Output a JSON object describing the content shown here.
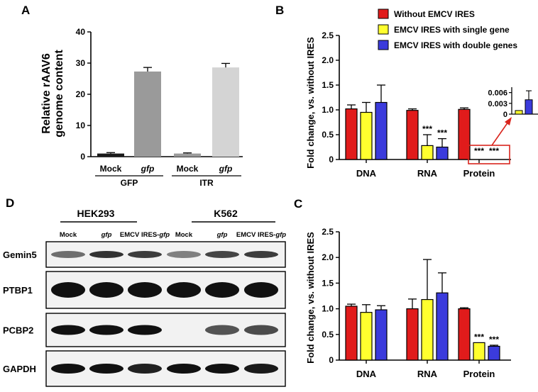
{
  "panel_labels": {
    "a": "A",
    "b": "B",
    "c": "C",
    "d": "D"
  },
  "colors": {
    "red": "#e11b1b",
    "yellow": "#ffff2e",
    "blue": "#3b3bdc",
    "dark": "#1a1a1a",
    "gray": "#9a9a9a",
    "light_gray": "#d4d4d4",
    "inset_box": "#d9251d"
  },
  "legend": [
    {
      "label": "Without EMCV IRES",
      "color": "#e11b1b"
    },
    {
      "label": "EMCV IRES with single gene",
      "color": "#ffff2e"
    },
    {
      "label": "EMCV IRES with double genes",
      "color": "#3b3bdc"
    }
  ],
  "blot": {
    "cell_lines": [
      "HEK293",
      "K562"
    ],
    "lanes": [
      {
        "text": "Mock",
        "italic": ""
      },
      {
        "text": "",
        "italic": "gfp"
      },
      {
        "text": "EMCV IRES-",
        "italic": "gfp"
      },
      {
        "text": "Mock",
        "italic": ""
      },
      {
        "text": "",
        "italic": "gfp"
      },
      {
        "text": "EMCV IRES-",
        "italic": "gfp"
      }
    ],
    "proteins": [
      "Gemin5",
      "PTBP1",
      "PCBP2",
      "GAPDH"
    ],
    "band_intensity": [
      [
        0.45,
        0.8,
        0.75,
        0.35,
        0.7,
        0.75
      ],
      [
        1.0,
        1.0,
        1.0,
        1.0,
        1.0,
        1.0
      ],
      [
        1.0,
        1.0,
        1.0,
        0.0,
        0.6,
        0.65
      ],
      [
        1.0,
        1.0,
        0.9,
        1.0,
        1.0,
        0.95
      ]
    ]
  },
  "chart_data": [
    {
      "id": "A",
      "type": "bar",
      "title": "",
      "ylabel": "Relative rAAV6 genome content",
      "ylim": [
        0,
        40
      ],
      "yticks": [
        0,
        10,
        20,
        30,
        40
      ],
      "categories": [
        "Mock",
        "gfp",
        "Mock",
        "gfp"
      ],
      "italic_categories": [
        false,
        true,
        false,
        true
      ],
      "groups": [
        {
          "label": "GFP",
          "span": [
            0,
            1
          ]
        },
        {
          "label": "ITR",
          "span": [
            2,
            3
          ]
        }
      ],
      "values": [
        1.0,
        27.3,
        1.0,
        28.6
      ],
      "errors": [
        0.3,
        1.3,
        0.2,
        1.3
      ],
      "bar_colors": [
        "#1a1a1a",
        "#9a9a9a",
        "#9a9a9a",
        "#d4d4d4"
      ]
    },
    {
      "id": "B",
      "type": "bar",
      "title": "",
      "ylabel": "Fold change, vs. without IRES",
      "ylim": [
        0,
        2.5
      ],
      "yticks": [
        "0",
        "0.5",
        "1.0",
        "1.5",
        "2.0",
        "2.5"
      ],
      "categories": [
        "DNA",
        "RNA",
        "Protein"
      ],
      "series": [
        {
          "name": "Without EMCV IRES",
          "values": [
            1.02,
            0.99,
            1.01
          ],
          "errors": [
            0.08,
            0.03,
            0.03
          ]
        },
        {
          "name": "EMCV IRES with single gene",
          "values": [
            0.95,
            0.28,
            0.0
          ],
          "errors": [
            0.2,
            0.22,
            0.0
          ]
        },
        {
          "name": "EMCV IRES with double genes",
          "values": [
            1.15,
            0.25,
            0.0
          ],
          "errors": [
            0.35,
            0.17,
            0.0
          ]
        }
      ],
      "significance": [
        {
          "category": "RNA",
          "series": 1,
          "label": "***"
        },
        {
          "category": "RNA",
          "series": 2,
          "label": "***"
        },
        {
          "category": "Protein",
          "series": 1,
          "label": "***"
        },
        {
          "category": "Protein",
          "series": 2,
          "label": "***"
        }
      ],
      "inset": {
        "yticks": [
          "0",
          "0.003",
          "0.006"
        ],
        "ylim": [
          0,
          0.0075
        ],
        "values": [
          0.001,
          0.004
        ],
        "errors": [
          0,
          0.0025
        ]
      }
    },
    {
      "id": "C",
      "type": "bar",
      "title": "",
      "ylabel": "Fold change, vs. without IRES",
      "ylim": [
        0,
        2.5
      ],
      "yticks": [
        "0",
        "0.5",
        "1.0",
        "1.5",
        "2.0",
        "2.5"
      ],
      "categories": [
        "DNA",
        "RNA",
        "Protein"
      ],
      "series": [
        {
          "name": "Without EMCV IRES",
          "values": [
            1.05,
            1.0,
            1.0
          ],
          "errors": [
            0.04,
            0.19,
            0.02
          ]
        },
        {
          "name": "EMCV IRES with single gene",
          "values": [
            0.93,
            1.18,
            0.34
          ],
          "errors": [
            0.15,
            0.78,
            0.0
          ]
        },
        {
          "name": "EMCV IRES with double genes",
          "values": [
            0.98,
            1.31,
            0.27
          ],
          "errors": [
            0.08,
            0.39,
            0.02
          ]
        }
      ],
      "significance": [
        {
          "category": "Protein",
          "series": 1,
          "label": "***"
        },
        {
          "category": "Protein",
          "series": 2,
          "label": "***"
        }
      ]
    }
  ]
}
